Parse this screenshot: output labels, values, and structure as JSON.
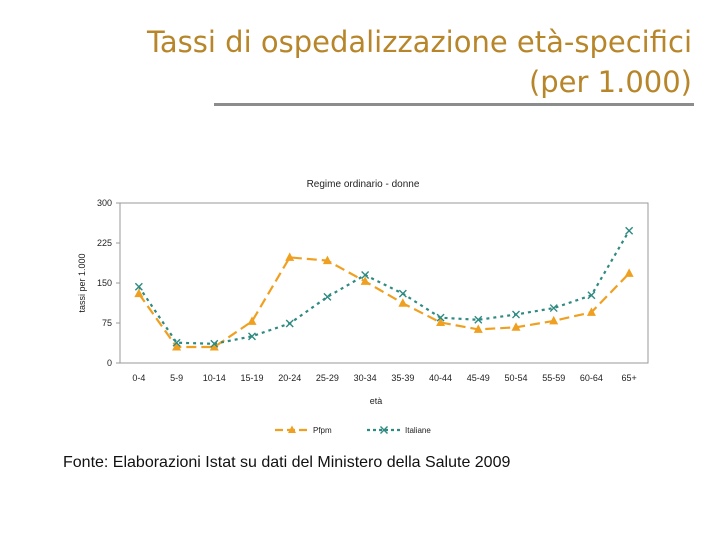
{
  "slide": {
    "title_line1": "Tassi di ospedalizzazione età-specifici",
    "title_line2": "(per 1.000)",
    "source": "Fonte: Elaborazioni Istat su dati del Ministero della Salute 2009"
  },
  "colors": {
    "title": "#b8862a",
    "rule": "#8c8c8c",
    "series_pfpm": "#f0a020",
    "series_italiane": "#2f8a82",
    "plot_border": "#999999"
  },
  "chart_data": {
    "type": "line",
    "title": "Regime ordinario - donne",
    "xlabel": "età",
    "ylabel": "tassi per 1.000",
    "ylim": [
      0,
      300
    ],
    "yticks": [
      0,
      75,
      150,
      225,
      300
    ],
    "grid": false,
    "legend_position": "bottom",
    "categories": [
      "0-4",
      "5-9",
      "10-14",
      "15-19",
      "20-24",
      "25-29",
      "30-34",
      "35-39",
      "40-44",
      "45-49",
      "50-54",
      "55-59",
      "60-64",
      "65+"
    ],
    "series": [
      {
        "name": "Pfpm",
        "marker": "triangle",
        "style": "dashed",
        "values": [
          130,
          30,
          30,
          78,
          198,
          192,
          153,
          112,
          76,
          63,
          67,
          79,
          95,
          168
        ]
      },
      {
        "name": "Italiane",
        "marker": "x",
        "style": "dotted",
        "values": [
          143,
          38,
          36,
          50,
          74,
          124,
          165,
          130,
          85,
          81,
          91,
          103,
          127,
          248
        ]
      }
    ]
  }
}
